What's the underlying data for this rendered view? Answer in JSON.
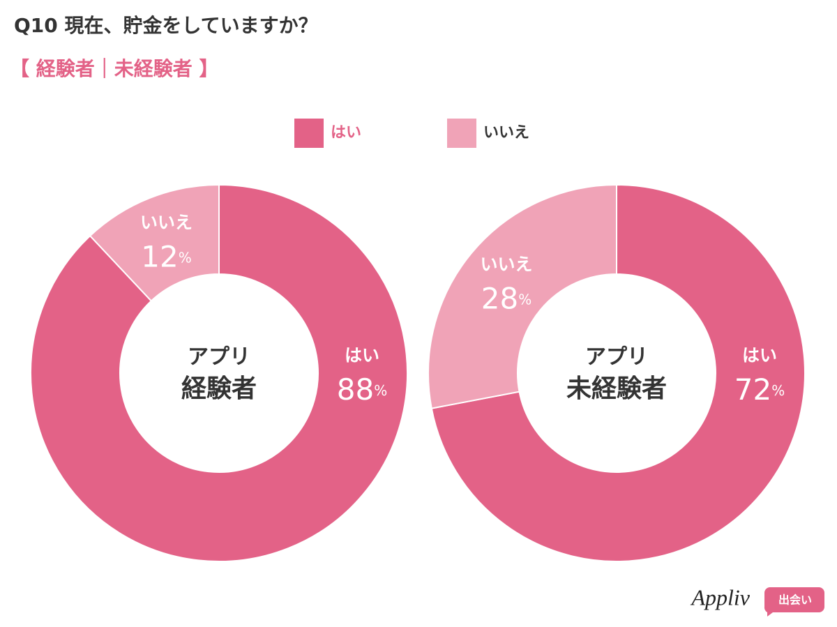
{
  "title": "Q10 現在、貯金をしていますか？",
  "subtitle": "【 経験者｜未経験者 】",
  "logo": {
    "name": "Appliv",
    "tag": "出会い"
  },
  "chart_data": [
    {
      "type": "donut",
      "center_label": [
        "アプリ",
        "経験者"
      ],
      "categories": [
        "はい",
        "いいえ"
      ],
      "values": [
        88,
        12
      ],
      "value_labels": [
        "88%",
        "12%"
      ],
      "colors": [
        "#e36287",
        "#f0a3b7"
      ],
      "legend": "top"
    },
    {
      "type": "donut",
      "center_label": [
        "アプリ",
        "未経験者"
      ],
      "categories": [
        "はい",
        "いいえ"
      ],
      "values": [
        72,
        28
      ],
      "value_labels": [
        "72%",
        "28%"
      ],
      "colors": [
        "#e36287",
        "#f0a3b7"
      ]
    }
  ]
}
